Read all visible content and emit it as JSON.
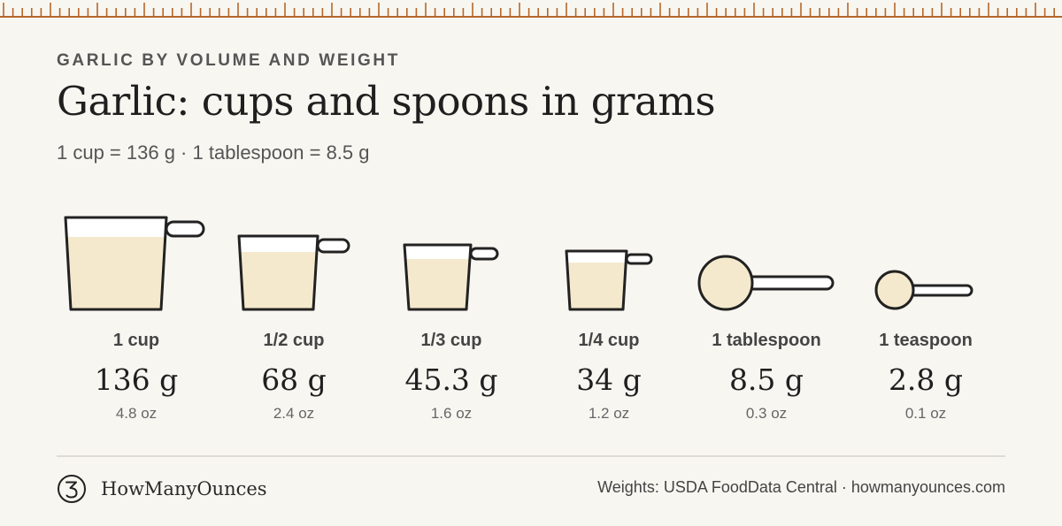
{
  "eyebrow": "GARLIC BY VOLUME AND WEIGHT",
  "title": "Garlic: cups and spoons in grams",
  "subtitle": "1 cup = 136 g · 1 tablespoon = 8.5 g",
  "measures": [
    {
      "label": "1 cup",
      "grams": "136 g",
      "oz": "4.8 oz",
      "icon": "measuring-cup-icon"
    },
    {
      "label": "1/2 cup",
      "grams": "68 g",
      "oz": "2.4 oz",
      "icon": "measuring-cup-icon"
    },
    {
      "label": "1/3 cup",
      "grams": "45.3 g",
      "oz": "1.6 oz",
      "icon": "measuring-cup-icon"
    },
    {
      "label": "1/4 cup",
      "grams": "34 g",
      "oz": "1.2 oz",
      "icon": "measuring-cup-icon"
    },
    {
      "label": "1 tablespoon",
      "grams": "8.5 g",
      "oz": "0.3 oz",
      "icon": "measuring-spoon-icon"
    },
    {
      "label": "1 teaspoon",
      "grams": "2.8 g",
      "oz": "0.1 oz",
      "icon": "measuring-spoon-icon"
    }
  ],
  "footer": {
    "brand_name": "HowManyOunces",
    "brand_icon": "ounce-symbol-logo-icon",
    "source": "Weights: USDA FoodData Central · howmanyounces.com"
  },
  "colors": {
    "background": "#f8f6f1",
    "ruler": "#b5672a",
    "fill": "#f4e9cc",
    "outline": "#222222"
  }
}
